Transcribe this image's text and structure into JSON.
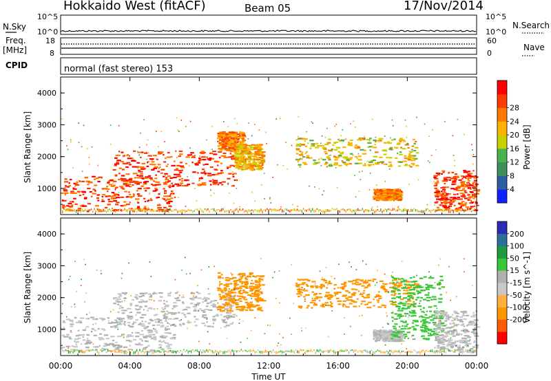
{
  "header": {
    "station": "Hokkaido West (fitACF)",
    "beam": "Beam 05",
    "date": "17/Nov/2014"
  },
  "top_panels": {
    "nsky_label": "N.Sky",
    "nsky_ticks": [
      "10^5",
      "10^0"
    ],
    "nsearch_label": "N.Search",
    "nsearch_ticks": [
      "10^5",
      "10^0"
    ],
    "freq_label": "Freq.",
    "freq_unit": "[MHz]",
    "freq_ticks": [
      "18",
      "8"
    ],
    "nave_label": "Nave",
    "nave_ticks": [
      "60",
      "0"
    ],
    "cpid_label": "CPID",
    "cpid_text": "normal (fast stereo) 153"
  },
  "colors": {
    "power_scale": [
      "#1020ff",
      "#2f5fa0",
      "#3c8f5c",
      "#49b24c",
      "#c8d000",
      "#ffb000",
      "#ff7800",
      "#ff3b00",
      "#ff0000"
    ],
    "velocity_scale": [
      "#ff0000",
      "#ff5a00",
      "#ff9600",
      "#ffb13b",
      "#c8c8c8",
      "#b0b0b0",
      "#37c837",
      "#1f9a3f",
      "#2e6f9a",
      "#2b2bb5"
    ]
  },
  "chart_data": [
    {
      "type": "heatmap",
      "name": "power",
      "xlabel": "",
      "ylabel": "Slant Range [km]",
      "x_ticks": [
        "00:00",
        "04:00",
        "08:00",
        "12:00",
        "16:00",
        "20:00",
        "00:00"
      ],
      "y_ticks": [
        "1000",
        "2000",
        "3000",
        "4000"
      ],
      "ylim": [
        180,
        4500
      ],
      "colorbar_label": "Power [dB]",
      "colorbar_ticks": [
        "4",
        "8",
        "12",
        "16",
        "20",
        "24",
        "28"
      ],
      "regions": [
        {
          "t0": 0.0,
          "t1": 6.6,
          "r0": 300,
          "r1": 1400,
          "value": 30
        },
        {
          "t0": 3.0,
          "t1": 10.0,
          "r0": 1100,
          "r1": 2200,
          "value": 30
        },
        {
          "t0": 9.0,
          "t1": 10.5,
          "r0": 2200,
          "r1": 2800,
          "value": 26
        },
        {
          "t0": 10.0,
          "t1": 11.6,
          "r0": 1600,
          "r1": 2400,
          "value": 22
        },
        {
          "t0": 13.5,
          "t1": 20.5,
          "r0": 1700,
          "r1": 2600,
          "value": 20
        },
        {
          "t0": 18.0,
          "t1": 19.6,
          "r0": 650,
          "r1": 1000,
          "value": 26
        },
        {
          "t0": 21.5,
          "t1": 24.0,
          "r0": 300,
          "r1": 1600,
          "value": 30
        }
      ]
    },
    {
      "type": "heatmap",
      "name": "velocity",
      "xlabel": "Time UT",
      "ylabel": "Slant Range [km]",
      "x_ticks": [
        "00:00",
        "04:00",
        "08:00",
        "12:00",
        "16:00",
        "20:00",
        "00:00"
      ],
      "y_ticks": [
        "1000",
        "2000",
        "3000",
        "4000"
      ],
      "ylim": [
        180,
        4500
      ],
      "colorbar_label": "Velocity [m s^-1]",
      "colorbar_ticks": [
        "200",
        "100",
        "50",
        "15",
        "-15",
        "-50",
        "-100",
        "-200"
      ],
      "regions": [
        {
          "t0": 0.0,
          "t1": 6.6,
          "r0": 300,
          "r1": 1400,
          "value": 0
        },
        {
          "t0": 3.0,
          "t1": 10.0,
          "r0": 1100,
          "r1": 2200,
          "value": 0
        },
        {
          "t0": 9.0,
          "t1": 11.6,
          "r0": 1600,
          "r1": 2800,
          "value": -60
        },
        {
          "t0": 13.5,
          "t1": 20.5,
          "r0": 1700,
          "r1": 2600,
          "value": -60
        },
        {
          "t0": 18.0,
          "t1": 19.6,
          "r0": 650,
          "r1": 1000,
          "value": 0
        },
        {
          "t0": 19.0,
          "t1": 22.0,
          "r0": 700,
          "r1": 2700,
          "value": 40
        },
        {
          "t0": 21.5,
          "t1": 24.0,
          "r0": 300,
          "r1": 1600,
          "value": 0
        }
      ]
    }
  ]
}
